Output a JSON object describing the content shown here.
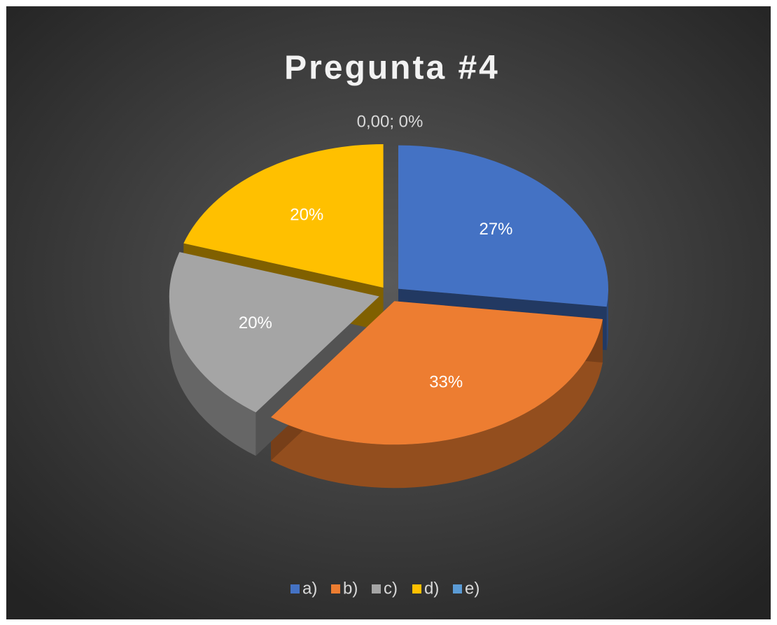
{
  "chart_data": {
    "type": "pie",
    "title": "Pregunta #4",
    "categories": [
      "a)",
      "b)",
      "c)",
      "d)",
      "e)"
    ],
    "values": [
      27,
      33,
      20,
      20,
      0
    ],
    "value_labels": [
      "27%",
      "33%",
      "20%",
      "20%",
      "0,00; 0%"
    ],
    "colors": [
      "#4472c4",
      "#ed7d31",
      "#a5a5a5",
      "#ffc000",
      "#5b9bd5"
    ],
    "legend": "bottom"
  }
}
